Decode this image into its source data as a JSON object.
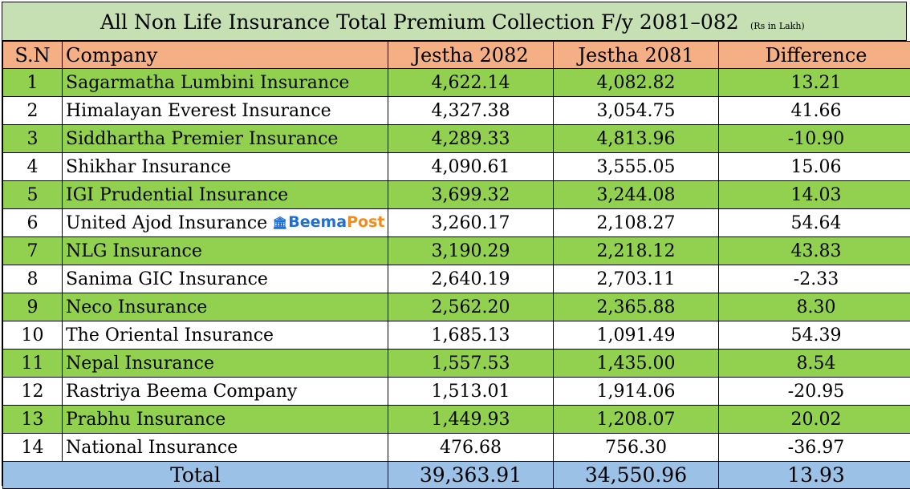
{
  "title": "All Non Life Insurance Total Premium Collection F/y 2081–082",
  "unit_note": "(Rs in Lakh)",
  "headers": {
    "sn": "S.N",
    "company": "Company",
    "col1": "Jestha  2082",
    "col2": "Jestha 2081",
    "diff": "Difference"
  },
  "watermark": {
    "icon": "bank-building-icon",
    "part1": "Beema",
    "part2": "Post"
  },
  "rows": [
    {
      "sn": "1",
      "company": "Sagarmatha Lumbini Insurance",
      "j2082": "4,622.14",
      "j2081": "4,082.82",
      "diff": "13.21"
    },
    {
      "sn": "2",
      "company": "Himalayan Everest Insurance",
      "j2082": "4,327.38",
      "j2081": "3,054.75",
      "diff": "41.66"
    },
    {
      "sn": "3",
      "company": "Siddhartha Premier Insurance",
      "j2082": "4,289.33",
      "j2081": "4,813.96",
      "diff": "-10.90"
    },
    {
      "sn": "4",
      "company": "Shikhar Insurance",
      "j2082": "4,090.61",
      "j2081": "3,555.05",
      "diff": "15.06"
    },
    {
      "sn": "5",
      "company": "IGI Prudential Insurance",
      "j2082": "3,699.32",
      "j2081": "3,244.08",
      "diff": "14.03"
    },
    {
      "sn": "6",
      "company": "United Ajod Insurance",
      "j2082": "3,260.17",
      "j2081": "2,108.27",
      "diff": "54.64"
    },
    {
      "sn": "7",
      "company": "NLG Insurance",
      "j2082": "3,190.29",
      "j2081": "2,218.12",
      "diff": "43.83"
    },
    {
      "sn": "8",
      "company": "Sanima GIC Insurance",
      "j2082": "2,640.19",
      "j2081": "2,703.11",
      "diff": "-2.33"
    },
    {
      "sn": "9",
      "company": "Neco Insurance",
      "j2082": "2,562.20",
      "j2081": "2,365.88",
      "diff": "8.30"
    },
    {
      "sn": "10",
      "company": "The Oriental Insurance",
      "j2082": "1,685.13",
      "j2081": "1,091.49",
      "diff": "54.39"
    },
    {
      "sn": "11",
      "company": "Nepal Insurance",
      "j2082": "1,557.53",
      "j2081": "1,435.00",
      "diff": "8.54"
    },
    {
      "sn": "12",
      "company": "Rastriya Beema Company",
      "j2082": "1,513.01",
      "j2081": "1,914.06",
      "diff": "-20.95"
    },
    {
      "sn": "13",
      "company": "Prabhu Insurance",
      "j2082": "1,449.93",
      "j2081": "1,208.07",
      "diff": "20.02"
    },
    {
      "sn": "14",
      "company": "National Insurance",
      "j2082": "476.68",
      "j2081": "756.30",
      "diff": "-36.97"
    }
  ],
  "total": {
    "label": "Total",
    "j2082": "39,363.91",
    "j2081": "34,550.96",
    "diff": "13.93"
  },
  "colors": {
    "title_bg": "#c6e0b4",
    "header_bg": "#f4b084",
    "green_row": "#92d050",
    "total_bg": "#9bc2e6"
  }
}
